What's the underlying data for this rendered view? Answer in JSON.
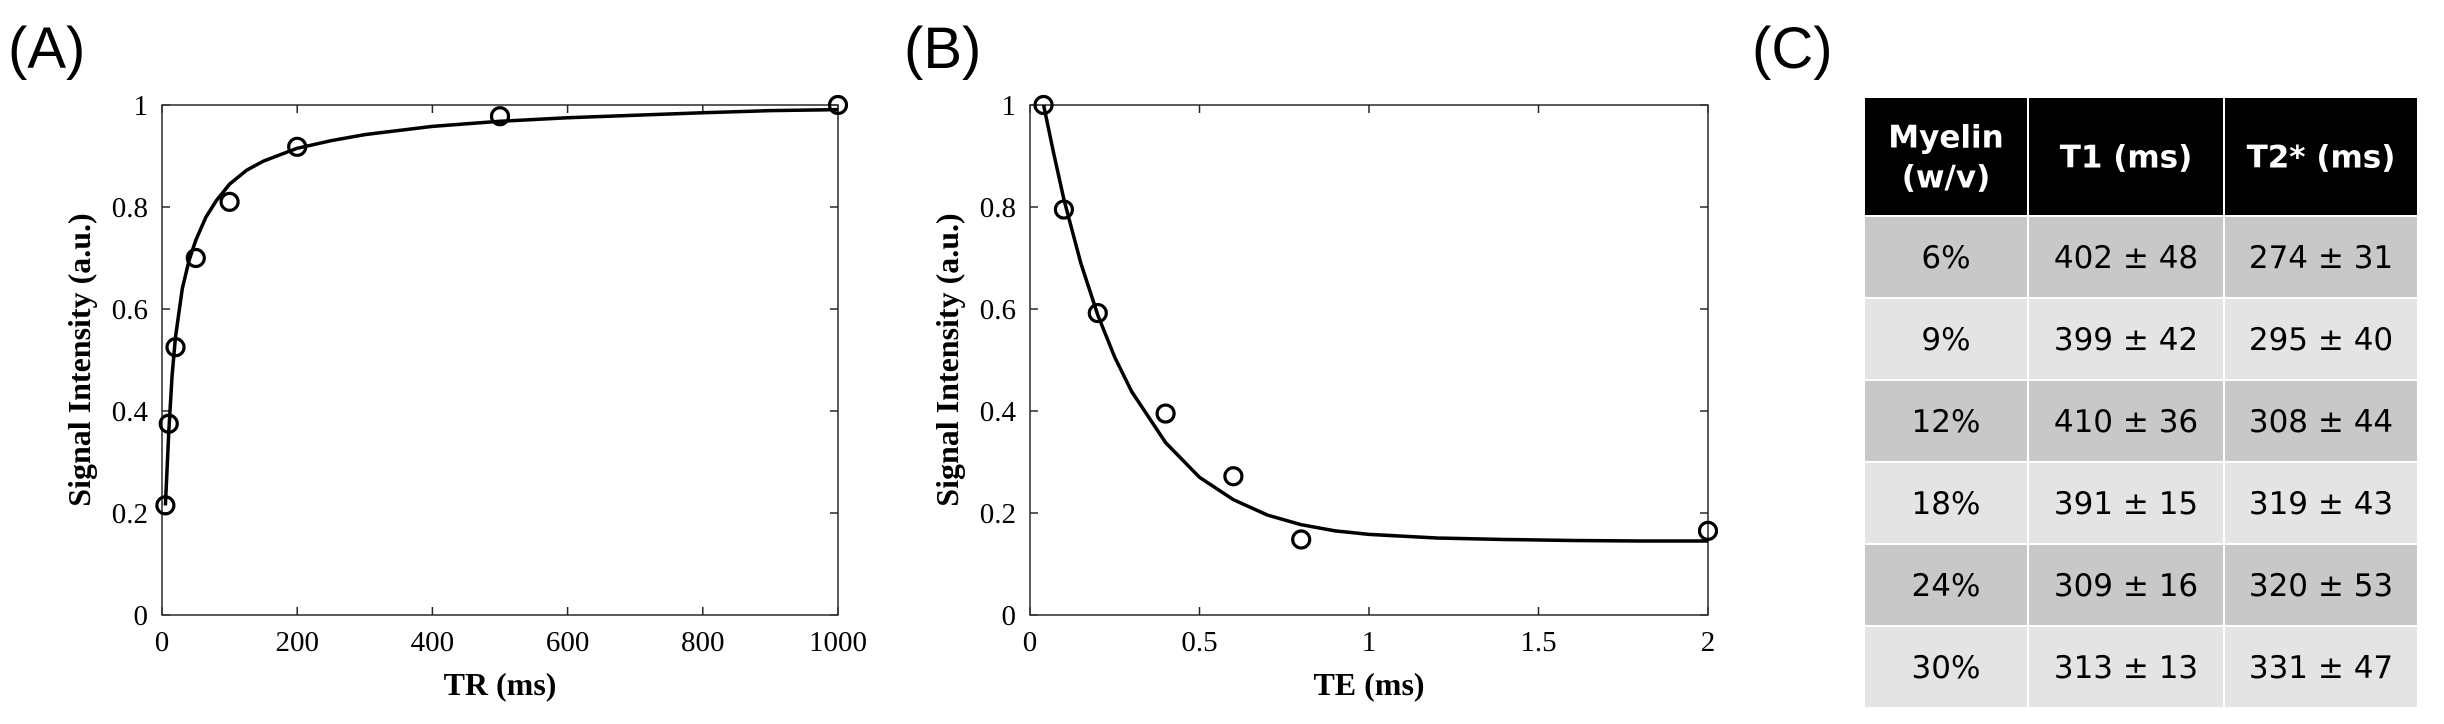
{
  "panels": [
    {
      "label": "(A)"
    },
    {
      "label": "(B)"
    },
    {
      "label": "(C)"
    }
  ],
  "chart_data": [
    {
      "type": "scatter",
      "panel": "(A)",
      "xlabel": "TR (ms)",
      "ylabel": "Signal Intensity (a.u.)",
      "xlim": [
        0,
        1000
      ],
      "ylim": [
        0,
        1
      ],
      "xticks": [
        0,
        200,
        400,
        600,
        800,
        1000
      ],
      "yticks": [
        0,
        0.2,
        0.4,
        0.6,
        0.8,
        1
      ],
      "xtick_labels": [
        "0",
        "200",
        "400",
        "600",
        "800",
        "1000"
      ],
      "ytick_labels": [
        "0",
        "0.2",
        "0.4",
        "0.6",
        "0.8",
        "1"
      ],
      "grid": false,
      "points": {
        "x": [
          5,
          10,
          20,
          50,
          100,
          200,
          500,
          1000
        ],
        "y": [
          0.215,
          0.375,
          0.525,
          0.7,
          0.81,
          0.918,
          0.978,
          1.0
        ]
      },
      "fit": {
        "x": [
          5,
          10,
          15,
          20,
          30,
          40,
          50,
          65,
          80,
          100,
          125,
          150,
          200,
          250,
          300,
          400,
          500,
          600,
          700,
          800,
          900,
          1000
        ],
        "y": [
          0.215,
          0.36,
          0.47,
          0.545,
          0.64,
          0.695,
          0.735,
          0.78,
          0.812,
          0.845,
          0.872,
          0.89,
          0.915,
          0.93,
          0.942,
          0.958,
          0.968,
          0.975,
          0.98,
          0.985,
          0.989,
          0.991
        ]
      }
    },
    {
      "type": "scatter",
      "panel": "(B)",
      "xlabel": "TE (ms)",
      "ylabel": "Signal Intensity (a.u.)",
      "xlim": [
        0,
        2
      ],
      "ylim": [
        0,
        1
      ],
      "xticks": [
        0,
        0.5,
        1,
        1.5,
        2
      ],
      "yticks": [
        0,
        0.2,
        0.4,
        0.6,
        0.8,
        1
      ],
      "xtick_labels": [
        "0",
        "0.5",
        "1",
        "1.5",
        "2"
      ],
      "ytick_labels": [
        "0",
        "0.2",
        "0.4",
        "0.6",
        "0.8",
        "1"
      ],
      "grid": false,
      "points": {
        "x": [
          0.04,
          0.1,
          0.2,
          0.4,
          0.6,
          0.8,
          2.0
        ],
        "y": [
          1.0,
          0.795,
          0.592,
          0.395,
          0.272,
          0.148,
          0.165
        ]
      },
      "fit": {
        "x": [
          0.04,
          0.07,
          0.1,
          0.15,
          0.2,
          0.25,
          0.3,
          0.4,
          0.5,
          0.6,
          0.7,
          0.8,
          0.9,
          1.0,
          1.2,
          1.4,
          1.6,
          1.8,
          2.0
        ],
        "y": [
          1.0,
          0.905,
          0.815,
          0.69,
          0.588,
          0.505,
          0.438,
          0.338,
          0.27,
          0.226,
          0.196,
          0.177,
          0.165,
          0.158,
          0.151,
          0.148,
          0.146,
          0.145,
          0.145
        ]
      }
    },
    {
      "type": "table",
      "panel": "(C)",
      "headers": [
        "Myelin\n(w/v)",
        "T1 (ms)",
        "T2* (ms)"
      ],
      "rows": [
        [
          "6%",
          "402 ± 48",
          "274 ± 31"
        ],
        [
          "9%",
          "399 ± 42",
          "295 ± 40"
        ],
        [
          "12%",
          "410 ± 36",
          "308 ± 44"
        ],
        [
          "18%",
          "391 ± 15",
          "319 ± 43"
        ],
        [
          "24%",
          "309 ± 16",
          "320 ± 53"
        ],
        [
          "30%",
          "313 ± 13",
          "331 ± 47"
        ]
      ]
    }
  ],
  "colors": {
    "header_bg": "#000000",
    "row_dark": "#c8c8c8",
    "row_light": "#e4e4e4",
    "cell_border": "#ffffff",
    "ink": "#000000"
  }
}
